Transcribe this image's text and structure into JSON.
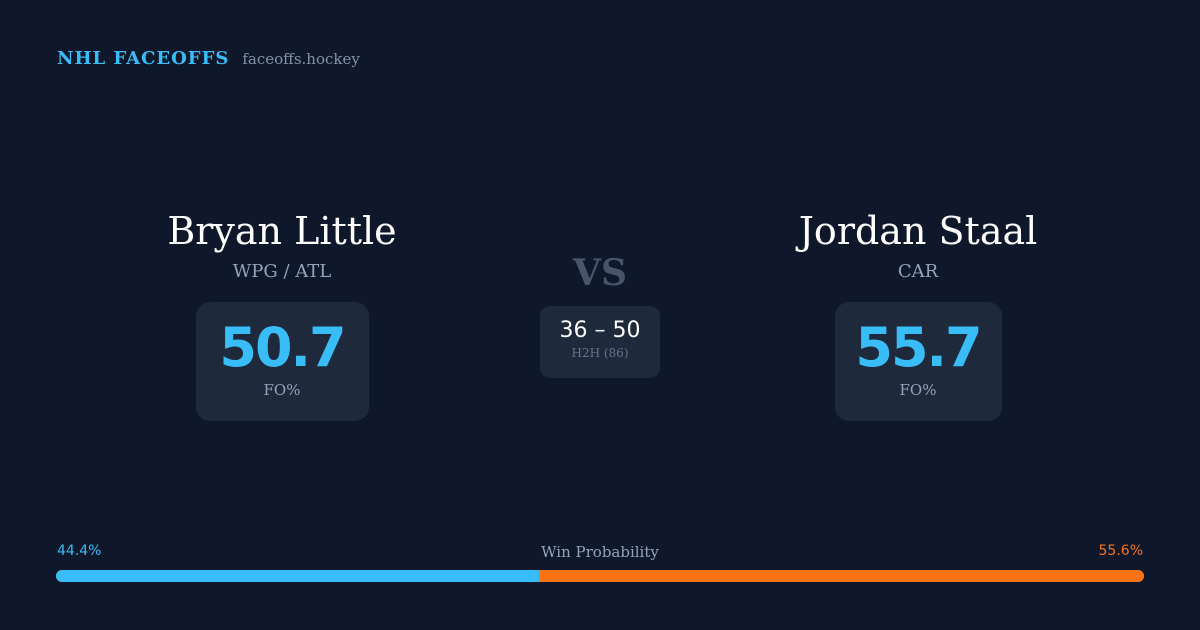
{
  "brand": {
    "name": "NHL FACEOFFS",
    "domain": "faceoffs.hockey"
  },
  "player_left": {
    "name": "Bryan Little",
    "team": "WPG / ATL",
    "stat_value": "50.7",
    "stat_label": "FO%"
  },
  "player_right": {
    "name": "Jordan Staal",
    "team": "CAR",
    "stat_value": "55.7",
    "stat_label": "FO%"
  },
  "versus": {
    "label": "VS",
    "h2h_score": "36 – 50",
    "h2h_label": "H2H (86)"
  },
  "win_probability": {
    "title": "Win Probability",
    "left_label": "44.4%",
    "right_label": "55.6%",
    "left_value": 44.4,
    "right_value": 55.6
  },
  "colors": {
    "background": "#0f172a",
    "card": "#1e293b",
    "accent_blue": "#38bdf8",
    "accent_orange": "#f97316",
    "muted": "#94a3b8"
  }
}
